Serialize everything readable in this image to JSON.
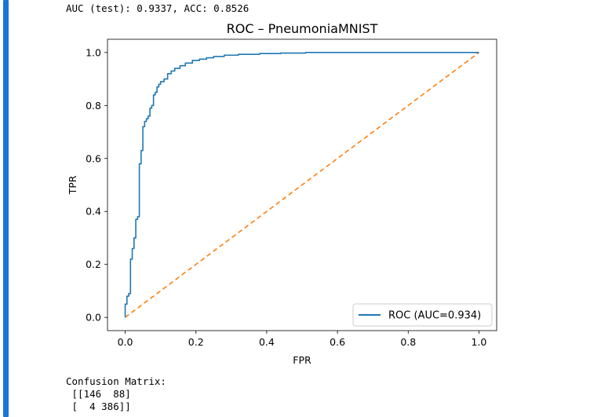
{
  "output": {
    "metrics_text": "AUC (test): 0.9337, ACC: 0.8526",
    "confusion_title": "Confusion Matrix:",
    "confusion_rows": [
      " [[146  88]",
      " [  4 386]]"
    ]
  },
  "colors": {
    "cell_bar": "#1976d2",
    "roc_line": "#1f77b4",
    "diagonal": "#ff7f0e"
  },
  "chart_data": {
    "type": "line",
    "title": "ROC – PneumoniaMNIST",
    "xlabel": "FPR",
    "ylabel": "TPR",
    "xlim": [
      -0.05,
      1.05
    ],
    "ylim": [
      -0.05,
      1.05
    ],
    "xticks": [
      "0.0",
      "0.2",
      "0.4",
      "0.6",
      "0.8",
      "1.0"
    ],
    "yticks": [
      "0.0",
      "0.2",
      "0.4",
      "0.6",
      "0.8",
      "1.0"
    ],
    "grid": false,
    "legend": "lower-right",
    "series": [
      {
        "name": "ROC (AUC=0.934)",
        "style": "solid",
        "x": [
          0.0,
          0.0,
          0.005,
          0.005,
          0.01,
          0.01,
          0.015,
          0.015,
          0.02,
          0.02,
          0.025,
          0.025,
          0.03,
          0.03,
          0.035,
          0.035,
          0.04,
          0.04,
          0.045,
          0.045,
          0.05,
          0.05,
          0.055,
          0.055,
          0.06,
          0.06,
          0.065,
          0.065,
          0.07,
          0.07,
          0.075,
          0.075,
          0.08,
          0.08,
          0.085,
          0.085,
          0.09,
          0.09,
          0.095,
          0.095,
          0.1,
          0.1,
          0.11,
          0.11,
          0.12,
          0.12,
          0.13,
          0.13,
          0.14,
          0.14,
          0.155,
          0.155,
          0.17,
          0.17,
          0.19,
          0.19,
          0.21,
          0.21,
          0.23,
          0.23,
          0.25,
          0.25,
          0.28,
          0.28,
          0.32,
          0.32,
          0.38,
          0.38,
          0.44,
          0.44,
          0.51,
          0.51,
          1.0
        ],
        "y": [
          0.0,
          0.05,
          0.05,
          0.08,
          0.08,
          0.09,
          0.09,
          0.22,
          0.22,
          0.26,
          0.26,
          0.3,
          0.3,
          0.37,
          0.37,
          0.38,
          0.38,
          0.58,
          0.58,
          0.63,
          0.63,
          0.72,
          0.72,
          0.74,
          0.74,
          0.75,
          0.75,
          0.76,
          0.76,
          0.79,
          0.79,
          0.8,
          0.8,
          0.84,
          0.84,
          0.85,
          0.85,
          0.87,
          0.87,
          0.88,
          0.88,
          0.89,
          0.89,
          0.9,
          0.9,
          0.92,
          0.92,
          0.93,
          0.93,
          0.94,
          0.94,
          0.95,
          0.95,
          0.96,
          0.96,
          0.97,
          0.97,
          0.975,
          0.975,
          0.98,
          0.98,
          0.985,
          0.985,
          0.99,
          0.99,
          0.993,
          0.993,
          0.996,
          0.996,
          0.998,
          0.998,
          1.0,
          1.0
        ]
      },
      {
        "name": "",
        "style": "dashed",
        "x": [
          0.0,
          1.0
        ],
        "y": [
          0.0,
          1.0
        ]
      }
    ]
  }
}
